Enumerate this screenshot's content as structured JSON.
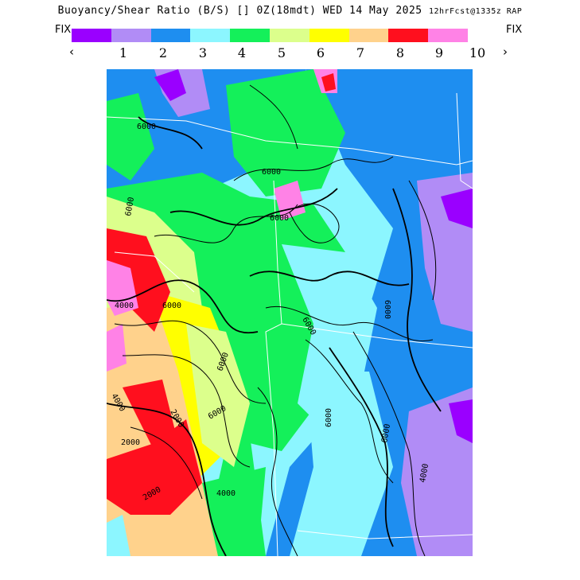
{
  "title": {
    "main": "Buoyancy/Shear Ratio (B/S) [] 0Z(18mdt) WED 14 May 2025",
    "forecast": "12hrFcst@1335z RAP"
  },
  "colorbar": {
    "fix_left": "FIX",
    "fix_right": "FIX",
    "prev_arrow": "‹",
    "next_arrow": "›",
    "ticks": [
      "1",
      "2",
      "3",
      "4",
      "5",
      "6",
      "7",
      "8",
      "9",
      "10"
    ],
    "colors": [
      "#9a00ff",
      "#b18cf6",
      "#1e8ef0",
      "#8cf6ff",
      "#14f05a",
      "#dcff8c",
      "#ffff00",
      "#ffd28c",
      "#ff0f1e",
      "#ff82e6"
    ]
  },
  "map": {
    "contour_labels": [
      "6000",
      "6000",
      "6000",
      "6000",
      "6000",
      "4000",
      "4000",
      "2000",
      "2000",
      "2000",
      "6000",
      "6000",
      "4000",
      "6000",
      "6000",
      "6000",
      "6000",
      "4000"
    ]
  }
}
